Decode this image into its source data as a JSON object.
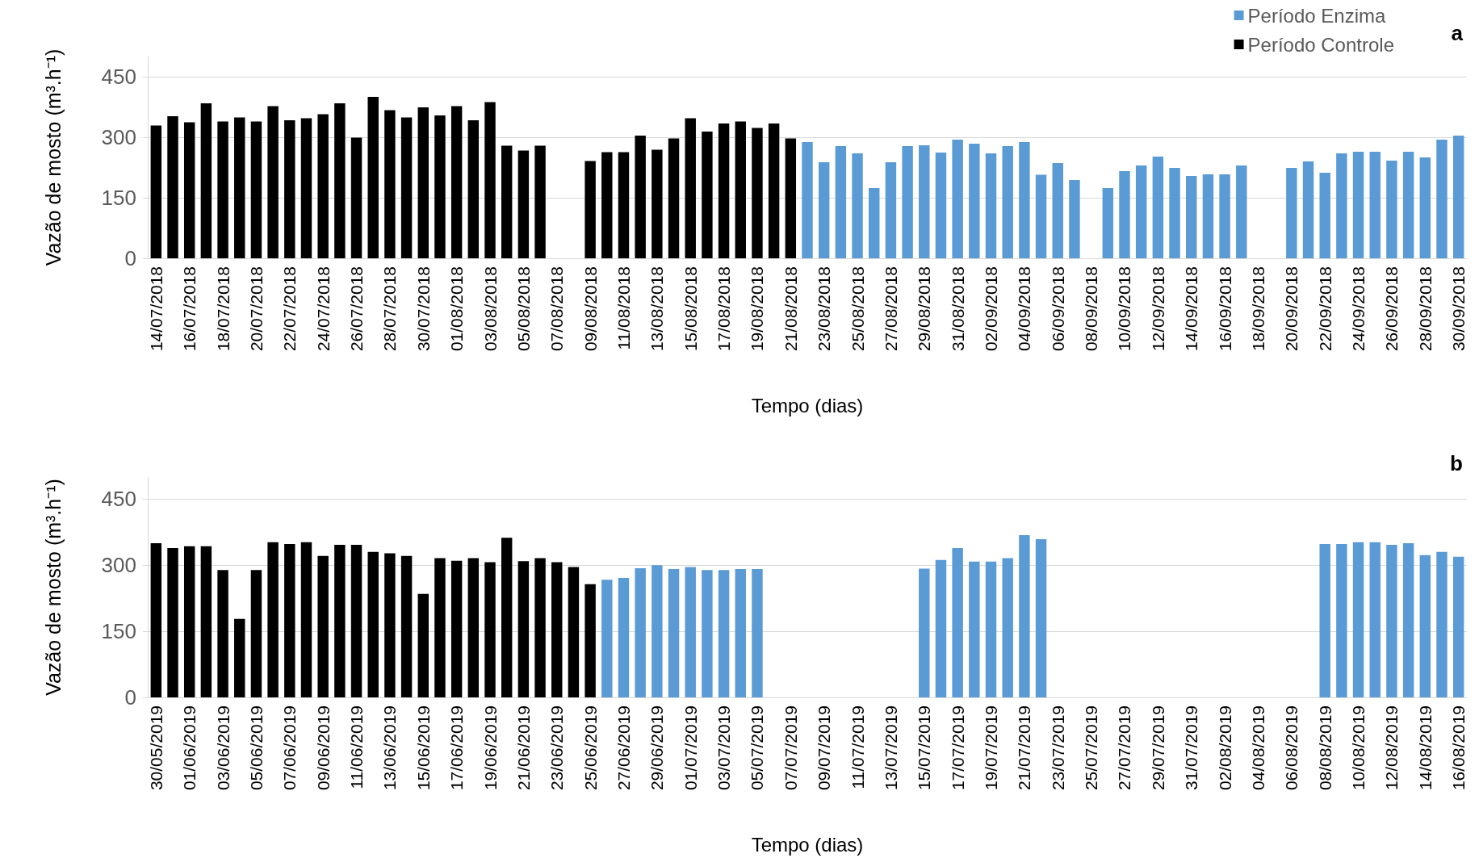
{
  "chart_data": [
    {
      "type": "bar",
      "xlabel": "Tempo (dias)",
      "ylabel": "Vazão de mosto (m³.h⁻¹)",
      "annotations": [
        "a"
      ],
      "legend": "top right",
      "grid": "y",
      "ylim": [
        0,
        500
      ],
      "yticks": [
        0,
        150,
        300,
        450
      ],
      "categories": [
        "14/07/2018",
        null,
        "16/07/2018",
        null,
        "18/07/2018",
        null,
        "20/07/2018",
        null,
        "22/07/2018",
        null,
        "24/07/2018",
        null,
        "26/07/2018",
        null,
        "28/07/2018",
        null,
        "30/07/2018",
        null,
        "01/08/2018",
        null,
        "03/08/2018",
        null,
        "05/08/2018",
        null,
        "07/08/2018",
        null,
        "09/08/2018",
        null,
        "11/08/2018",
        null,
        "13/08/2018",
        null,
        "15/08/2018",
        null,
        "17/08/2018",
        null,
        "19/08/2018",
        null,
        "21/08/2018",
        null,
        "23/08/2018",
        null,
        "25/08/2018",
        null,
        "27/08/2018",
        null,
        "29/08/2018",
        null,
        "31/08/2018",
        null,
        "02/09/2018",
        null,
        "04/09/2018",
        null,
        "06/09/2018",
        null,
        "08/09/2018",
        null,
        "10/09/2018",
        null,
        "12/09/2018",
        null,
        "14/09/2018",
        null,
        "16/09/2018",
        null,
        "18/09/2018",
        null,
        "20/09/2018",
        null,
        "22/09/2018",
        null,
        "24/09/2018",
        null,
        "26/09/2018",
        null,
        "28/09/2018",
        null,
        "30/09/2018"
      ],
      "series": [
        {
          "name": "Período Enzima",
          "color": "#5b9bd5",
          "values": [
            null,
            null,
            null,
            null,
            null,
            null,
            null,
            null,
            null,
            null,
            null,
            null,
            null,
            null,
            null,
            null,
            null,
            null,
            null,
            null,
            null,
            null,
            null,
            null,
            null,
            null,
            null,
            null,
            null,
            null,
            null,
            null,
            null,
            null,
            null,
            null,
            null,
            null,
            null,
            288,
            238,
            278,
            260,
            174,
            238,
            278,
            280,
            262,
            294,
            284,
            260,
            278,
            288,
            207,
            236,
            194,
            null,
            174,
            216,
            230,
            252,
            224,
            204,
            208,
            208,
            230,
            null,
            null,
            224,
            240,
            212,
            260,
            264,
            264,
            242,
            264,
            250,
            294,
            304
          ]
        },
        {
          "name": "Período Controle",
          "color": "#000000",
          "values": [
            329,
            352,
            337,
            384,
            339,
            349,
            339,
            377,
            342,
            347,
            357,
            384,
            299,
            400,
            367,
            349,
            374,
            354,
            377,
            342,
            387,
            279,
            267,
            279,
            null,
            null,
            241,
            263,
            263,
            304,
            269,
            297,
            347,
            314,
            334,
            339,
            323,
            334,
            297,
            null,
            null,
            null,
            null,
            null,
            null,
            null,
            null,
            null,
            null,
            null,
            null,
            null,
            null,
            null,
            null,
            null,
            null,
            null,
            null,
            null,
            null,
            null,
            null,
            null,
            null,
            null,
            null,
            null,
            null,
            null,
            null,
            null,
            null,
            null,
            null,
            null,
            null,
            null,
            null
          ]
        }
      ]
    },
    {
      "type": "bar",
      "xlabel": "Tempo (dias)",
      "ylabel": "Vazão de mosto (m³.h⁻¹)",
      "annotations": [
        "b"
      ],
      "grid": "y",
      "ylim": [
        0,
        500
      ],
      "yticks": [
        0,
        150,
        300,
        450
      ],
      "categories": [
        "30/05/2019",
        null,
        "01/06/2019",
        null,
        "03/06/2019",
        null,
        "05/06/2019",
        null,
        "07/06/2019",
        null,
        "09/06/2019",
        null,
        "11/06/2019",
        null,
        "13/06/2019",
        null,
        "15/06/2019",
        null,
        "17/06/2019",
        null,
        "19/06/2019",
        null,
        "21/06/2019",
        null,
        "23/06/2019",
        null,
        "25/06/2019",
        null,
        "27/06/2019",
        null,
        "29/06/2019",
        null,
        "01/07/2019",
        null,
        "03/07/2019",
        null,
        "05/07/2019",
        null,
        "07/07/2019",
        null,
        "09/07/2019",
        null,
        "11/07/2019",
        null,
        "13/07/2019",
        null,
        "15/07/2019",
        null,
        "17/07/2019",
        null,
        "19/07/2019",
        null,
        "21/07/2019",
        null,
        "23/07/2019",
        null,
        "25/07/2019",
        null,
        "27/07/2019",
        null,
        "29/07/2019",
        null,
        "31/07/2019",
        null,
        "02/08/2019",
        null,
        "04/08/2019",
        null,
        "06/08/2019",
        null,
        "08/08/2019",
        null,
        "10/08/2019",
        null,
        "12/08/2019",
        null,
        "14/08/2019",
        null,
        "16/08/2019"
      ],
      "series": [
        {
          "color": "#5b9bd5",
          "values": [
            null,
            null,
            null,
            null,
            null,
            null,
            null,
            null,
            null,
            null,
            null,
            null,
            null,
            null,
            null,
            null,
            null,
            null,
            null,
            null,
            null,
            null,
            null,
            null,
            null,
            null,
            null,
            267,
            271,
            293,
            300,
            291,
            296,
            289,
            289,
            291,
            291,
            null,
            null,
            null,
            null,
            null,
            null,
            null,
            null,
            null,
            292,
            312,
            339,
            308,
            308,
            316,
            368,
            359,
            null,
            null,
            null,
            null,
            null,
            null,
            null,
            null,
            null,
            null,
            null,
            null,
            null,
            null,
            null,
            null,
            348,
            348,
            352,
            352,
            346,
            350,
            323,
            330,
            319
          ]
        },
        {
          "color": "#000000",
          "values": [
            350,
            339,
            343,
            343,
            289,
            178,
            289,
            352,
            348,
            352,
            321,
            346,
            346,
            330,
            327,
            321,
            235,
            316,
            310,
            316,
            307,
            362,
            309,
            316,
            307,
            296,
            257,
            null,
            null,
            null,
            null,
            null,
            null,
            null,
            null,
            null,
            null,
            null,
            null,
            null,
            null,
            null,
            null,
            null,
            null,
            null,
            null,
            null,
            null,
            null,
            null,
            null,
            null,
            null,
            null,
            null,
            null,
            null,
            null,
            null,
            null,
            null,
            null,
            null,
            null,
            null,
            null,
            null,
            null,
            null,
            null,
            null,
            null,
            null,
            null,
            null,
            null,
            null,
            null
          ]
        }
      ]
    }
  ]
}
